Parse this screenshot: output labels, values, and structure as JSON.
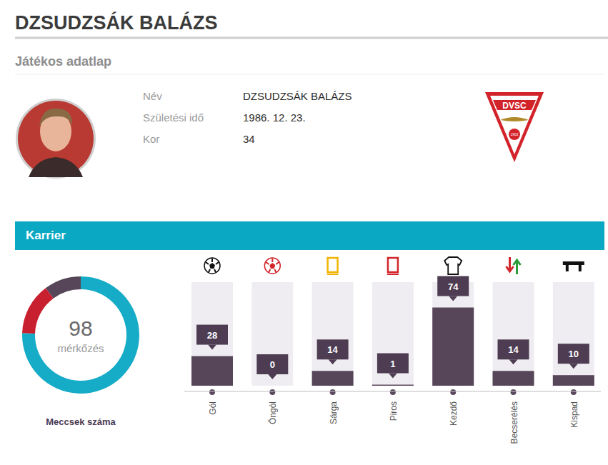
{
  "header": {
    "title": "DZSUDZSÁK BALÁZS",
    "subtitle": "Játékos adatlap"
  },
  "profile": {
    "rows": [
      [
        "Név",
        "DZSUDZSÁK BALÁZS"
      ],
      [
        "Születési idő",
        "1986. 12. 23."
      ],
      [
        "Kor",
        34
      ]
    ]
  },
  "logo": {
    "text": "DVSC",
    "year": "1902"
  },
  "section": {
    "title": "Karrier"
  },
  "chart_data": [
    {
      "type": "pie",
      "title": "Meccsek száma",
      "subtitle": "mérkőzés",
      "total": 98,
      "values": [
        74,
        14,
        10
      ],
      "colors": [
        "#16acc7",
        "#c8202f",
        "#574559"
      ]
    },
    {
      "type": "bar",
      "categories": [
        "Gól",
        "Öngól",
        "Sárga",
        "Piros",
        "Kezdő",
        "Becserélés",
        "Kispad"
      ],
      "values": [
        28,
        0,
        14,
        1,
        74,
        14,
        10
      ],
      "color": "#574559",
      "ylim": [
        0,
        98
      ],
      "data_labels": true,
      "tick_labels": "x"
    }
  ]
}
